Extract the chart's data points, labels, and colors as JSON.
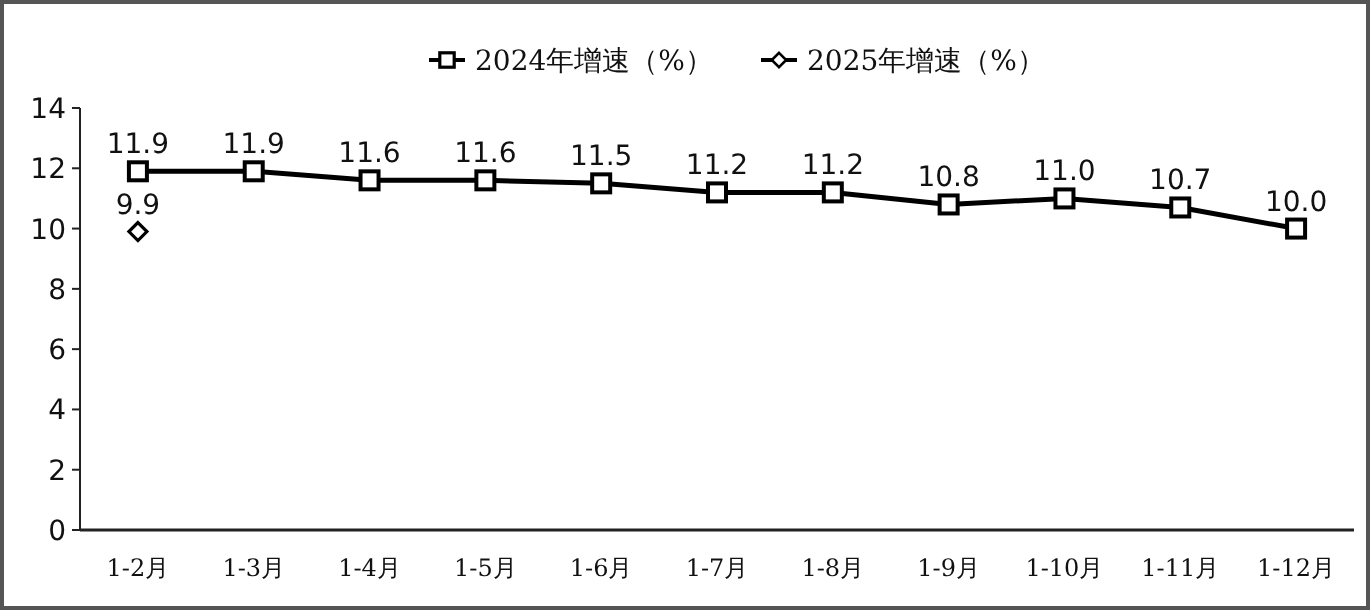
{
  "chart_data": {
    "type": "line",
    "categories": [
      "1-2月",
      "1-3月",
      "1-4月",
      "1-5月",
      "1-6月",
      "1-7月",
      "1-8月",
      "1-9月",
      "1-10月",
      "1-11月",
      "1-12月"
    ],
    "series": [
      {
        "name": "2024年增速（%）",
        "color": "#000000",
        "marker": "square",
        "values": [
          11.9,
          11.9,
          11.6,
          11.6,
          11.5,
          11.2,
          11.2,
          10.8,
          11.0,
          10.7,
          10.0
        ],
        "value_labels": [
          "11.9",
          "11.9",
          "11.6",
          "11.6",
          "11.5",
          "11.2",
          "11.2",
          "10.8",
          "11.0",
          "10.7",
          "10.0"
        ]
      },
      {
        "name": "2025年增速（%）",
        "color": "#000000",
        "marker": "diamond",
        "values": [
          9.9,
          null,
          null,
          null,
          null,
          null,
          null,
          null,
          null,
          null,
          null
        ],
        "value_labels": [
          "9.9",
          null,
          null,
          null,
          null,
          null,
          null,
          null,
          null,
          null,
          null
        ]
      }
    ],
    "ylim": [
      0,
      14
    ],
    "yticks": [
      0,
      2,
      4,
      6,
      8,
      10,
      12,
      14
    ],
    "legend": "top",
    "grid": false
  }
}
